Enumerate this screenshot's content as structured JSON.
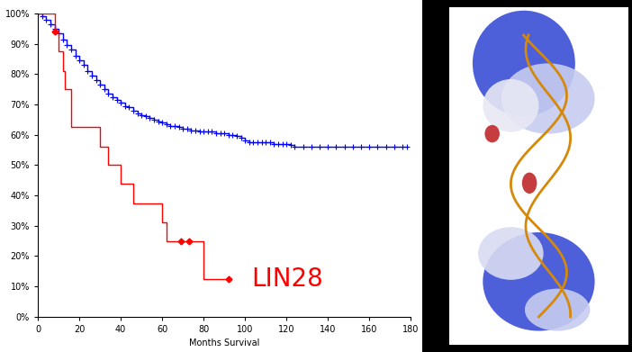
{
  "chart_data": {
    "type": "line",
    "xlabel": "Months Survival",
    "xlim": [
      0,
      180
    ],
    "xticks": [
      0,
      20,
      40,
      60,
      80,
      100,
      120,
      140,
      160,
      180
    ],
    "ylim": [
      0,
      100
    ],
    "yticks": [
      {
        "value": 0,
        "label": "0%"
      },
      {
        "value": 10,
        "label": "10%"
      },
      {
        "value": 20,
        "label": "20%"
      },
      {
        "value": 30,
        "label": "30%"
      },
      {
        "value": 40,
        "label": "40%"
      },
      {
        "value": 50,
        "label": "50%"
      },
      {
        "value": 60,
        "label": "60%"
      },
      {
        "value": 70,
        "label": "70%"
      },
      {
        "value": 80,
        "label": "80%"
      },
      {
        "value": 90,
        "label": "90%"
      },
      {
        "value": 100,
        "label": "100%"
      }
    ],
    "grid": false,
    "annotations": [
      {
        "text": "LIN28",
        "x": 103,
        "y": 12.5,
        "color": "#ff0000"
      }
    ],
    "series": [
      {
        "type": "step",
        "color": "#0000ff",
        "marker": "+",
        "x": [
          0,
          2,
          4,
          6,
          8,
          10,
          12,
          14,
          16,
          18,
          20,
          22,
          24,
          26,
          28,
          30,
          32,
          34,
          36,
          38,
          40,
          42,
          44,
          46,
          48,
          50,
          52,
          54,
          56,
          58,
          60,
          62,
          64,
          66,
          68,
          70,
          72,
          74,
          76,
          78,
          80,
          82,
          84,
          86,
          88,
          90,
          92,
          94,
          96,
          98,
          100,
          102,
          104,
          106,
          108,
          110,
          112,
          114,
          116,
          118,
          120,
          122,
          124,
          128,
          132,
          136,
          140,
          144,
          148,
          152,
          156,
          160,
          164,
          168,
          172,
          176,
          178
        ],
        "values": [
          100,
          99,
          98,
          96.5,
          95,
          93.5,
          91.5,
          89.5,
          88,
          86,
          84.5,
          83,
          81,
          79.5,
          78,
          76.5,
          75,
          73.5,
          72.5,
          71.5,
          70.5,
          69.5,
          69,
          68,
          67,
          66.5,
          66,
          65.5,
          65,
          64.5,
          64,
          63.5,
          63,
          63,
          62.5,
          62,
          62,
          61.5,
          61.5,
          61,
          61,
          61,
          61,
          60.5,
          60.5,
          60.5,
          60,
          60,
          59.5,
          59,
          58,
          57.5,
          57.5,
          57.5,
          57.5,
          57.5,
          57.5,
          57,
          57,
          57,
          57,
          56.5,
          56,
          56,
          56,
          56,
          56,
          56,
          56,
          56,
          56,
          56,
          56,
          56,
          56,
          56,
          56
        ]
      },
      {
        "type": "step",
        "color": "#ff0000",
        "x": [
          0,
          8,
          10,
          12,
          13,
          16,
          30,
          34,
          40,
          46,
          60,
          62,
          69,
          73,
          80,
          92
        ],
        "values": [
          100,
          94,
          87.5,
          81,
          75,
          62.5,
          56,
          50,
          44,
          37.5,
          31,
          25,
          25,
          25,
          12.5,
          12.5
        ]
      },
      {
        "type": "scatter",
        "color": "#ff0000",
        "marker": "D",
        "x": [
          8,
          69,
          73,
          92
        ],
        "values": [
          94,
          25,
          25,
          12.5
        ]
      }
    ]
  }
}
